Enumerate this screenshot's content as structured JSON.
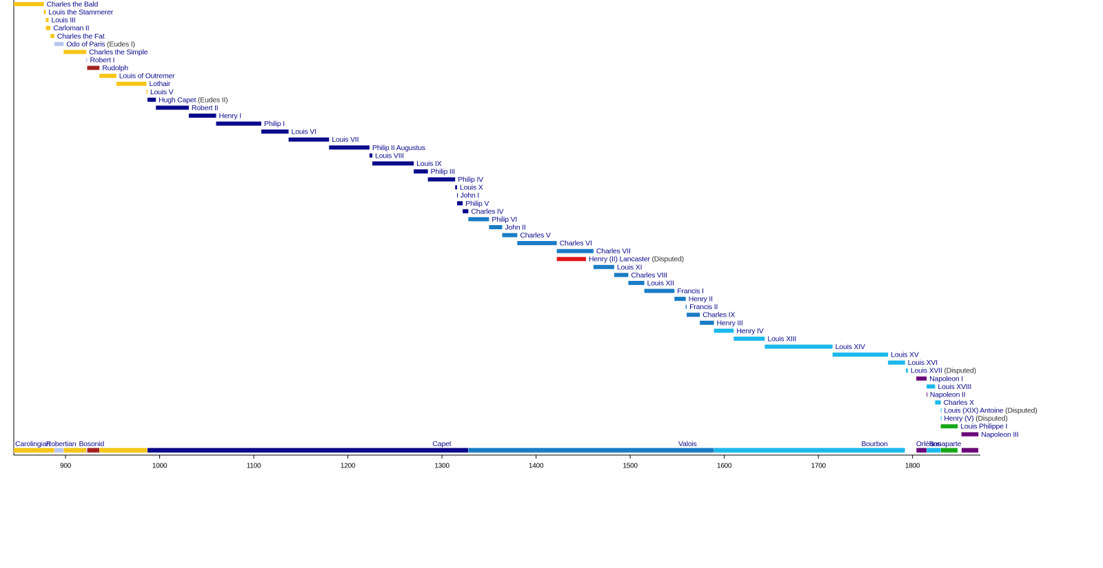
{
  "chart_data": {
    "type": "timeline",
    "xlim": [
      845,
      1872
    ],
    "xticks": [
      900,
      1000,
      1100,
      1200,
      1300,
      1400,
      1500,
      1600,
      1700,
      1800
    ],
    "rulers": [
      {
        "name": "Charles the Bald",
        "start": 843,
        "end": 877,
        "color": "#f5c518"
      },
      {
        "name": "Louis the Stammerer",
        "start": 877,
        "end": 879,
        "color": "#f5c518"
      },
      {
        "name": "Louis III",
        "start": 879,
        "end": 882,
        "color": "#f5c518"
      },
      {
        "name": "Carloman II",
        "start": 879,
        "end": 884,
        "color": "#f5c518"
      },
      {
        "name": "Charles the Fat",
        "start": 884,
        "end": 888,
        "color": "#f5c518"
      },
      {
        "name": "Odo of Paris",
        "note": "(Eudes I)",
        "start": 888,
        "end": 898,
        "color": "#b8c8ec"
      },
      {
        "name": "Charles the Simple",
        "start": 898,
        "end": 922,
        "color": "#f5c518"
      },
      {
        "name": "Robert I",
        "start": 922,
        "end": 923,
        "color": "#b8c8ec"
      },
      {
        "name": "Rudolph",
        "start": 923,
        "end": 936,
        "color": "#a52222"
      },
      {
        "name": "Louis of Outremer",
        "start": 936,
        "end": 954,
        "color": "#f5c518"
      },
      {
        "name": "Lothair",
        "start": 954,
        "end": 986,
        "color": "#f5c518"
      },
      {
        "name": "Louis V",
        "start": 986,
        "end": 987,
        "color": "#f5c518"
      },
      {
        "name": "Hugh Capet",
        "note": "(Eudes II)",
        "start": 987,
        "end": 996,
        "color": "#0a0a8c"
      },
      {
        "name": "Robert II",
        "start": 996,
        "end": 1031,
        "color": "#0a0a8c"
      },
      {
        "name": "Henry I",
        "start": 1031,
        "end": 1060,
        "color": "#0a0a8c"
      },
      {
        "name": "Philip I",
        "start": 1060,
        "end": 1108,
        "color": "#0a0a8c"
      },
      {
        "name": "Louis VI",
        "start": 1108,
        "end": 1137,
        "color": "#0a0a8c"
      },
      {
        "name": "Louis VII",
        "start": 1137,
        "end": 1180,
        "color": "#0a0a8c"
      },
      {
        "name": "Philip II Augustus",
        "start": 1180,
        "end": 1223,
        "color": "#0a0a8c"
      },
      {
        "name": "Louis VIII",
        "start": 1223,
        "end": 1226,
        "color": "#0a0a8c"
      },
      {
        "name": "Louis IX",
        "start": 1226,
        "end": 1270,
        "color": "#0a0a8c"
      },
      {
        "name": "Philip III",
        "start": 1270,
        "end": 1285,
        "color": "#0a0a8c"
      },
      {
        "name": "Philip IV",
        "start": 1285,
        "end": 1314,
        "color": "#0a0a8c"
      },
      {
        "name": "Louis X",
        "start": 1314,
        "end": 1316,
        "color": "#0a0a8c"
      },
      {
        "name": "John I",
        "start": 1316,
        "end": 1316.5,
        "color": "#0a0a8c"
      },
      {
        "name": "Philip V",
        "start": 1316,
        "end": 1322,
        "color": "#0a0a8c"
      },
      {
        "name": "Charles IV",
        "start": 1322,
        "end": 1328,
        "color": "#0a0a8c"
      },
      {
        "name": "Philip VI",
        "start": 1328,
        "end": 1350,
        "color": "#1a7cc4"
      },
      {
        "name": "John II",
        "start": 1350,
        "end": 1364,
        "color": "#1a7cc4"
      },
      {
        "name": "Charles V",
        "start": 1364,
        "end": 1380,
        "color": "#1a7cc4"
      },
      {
        "name": "Charles VI",
        "start": 1380,
        "end": 1422,
        "color": "#1a7cc4"
      },
      {
        "name": "Charles VII",
        "start": 1422,
        "end": 1461,
        "color": "#1a7cc4"
      },
      {
        "name": "Henry (II) Lancaster",
        "note": "(Disputed)",
        "start": 1422,
        "end": 1453,
        "color": "#e01818"
      },
      {
        "name": "Louis XI",
        "start": 1461,
        "end": 1483,
        "color": "#1a7cc4"
      },
      {
        "name": "Charles VIII",
        "start": 1483,
        "end": 1498,
        "color": "#1a7cc4"
      },
      {
        "name": "Louis XII",
        "start": 1498,
        "end": 1515,
        "color": "#1a7cc4"
      },
      {
        "name": "Francis I",
        "start": 1515,
        "end": 1547,
        "color": "#1a7cc4"
      },
      {
        "name": "Henry II",
        "start": 1547,
        "end": 1559,
        "color": "#1a7cc4"
      },
      {
        "name": "Francis II",
        "start": 1559,
        "end": 1560,
        "color": "#1a7cc4"
      },
      {
        "name": "Charles IX",
        "start": 1560,
        "end": 1574,
        "color": "#1a7cc4"
      },
      {
        "name": "Henry III",
        "start": 1574,
        "end": 1589,
        "color": "#1a7cc4"
      },
      {
        "name": "Henry IV",
        "start": 1589,
        "end": 1610,
        "color": "#1cb8ec"
      },
      {
        "name": "Louis XIII",
        "start": 1610,
        "end": 1643,
        "color": "#1cb8ec"
      },
      {
        "name": "Louis XIV",
        "start": 1643,
        "end": 1715,
        "color": "#1cb8ec"
      },
      {
        "name": "Louis XV",
        "start": 1715,
        "end": 1774,
        "color": "#1cb8ec"
      },
      {
        "name": "Louis XVI",
        "start": 1774,
        "end": 1792,
        "color": "#1cb8ec"
      },
      {
        "name": "Louis XVII",
        "note": "(Disputed)",
        "start": 1793,
        "end": 1795,
        "color": "#1cb8ec"
      },
      {
        "name": "Napoleon I",
        "start": 1804,
        "end": 1815,
        "color": "#6a0a78"
      },
      {
        "name": "Louis XVIII",
        "start": 1815,
        "end": 1824,
        "color": "#1cb8ec"
      },
      {
        "name": "Napoleon II",
        "start": 1815,
        "end": 1815.5,
        "color": "#6a0a78"
      },
      {
        "name": "Charles X",
        "start": 1824,
        "end": 1830,
        "color": "#1cb8ec"
      },
      {
        "name": "Louis (XIX) Antoine",
        "note": "(Disputed)",
        "start": 1830,
        "end": 1830.5,
        "color": "#1cb8ec"
      },
      {
        "name": "Henry (V)",
        "note": "(Disputed)",
        "start": 1830,
        "end": 1830.5,
        "color": "#1cb8ec"
      },
      {
        "name": "Louis Philippe I",
        "start": 1830,
        "end": 1848,
        "color": "#18a818"
      },
      {
        "name": "Napoleon III",
        "start": 1852,
        "end": 1870,
        "color": "#6a0a78"
      }
    ],
    "dynasties": [
      {
        "name": "Carolingian",
        "color": "#f5c518"
      },
      {
        "name": "Robertian",
        "color": "#b8c8ec"
      },
      {
        "name": "Bosonid",
        "color": "#a52222"
      },
      {
        "name": "Capet",
        "color": "#0a0a8c"
      },
      {
        "name": "Valois",
        "color": "#1a7cc4"
      },
      {
        "name": "Bourbon",
        "color": "#1cb8ec"
      },
      {
        "name": "Bonaparte",
        "color": "#6a0a78"
      },
      {
        "name": "Orléans",
        "color": "#18a818"
      }
    ],
    "dynasty_periods": [
      {
        "dynasty": 0,
        "start": 843,
        "end": 888
      },
      {
        "dynasty": 1,
        "start": 888,
        "end": 898
      },
      {
        "dynasty": 0,
        "start": 898,
        "end": 922
      },
      {
        "dynasty": 1,
        "start": 922,
        "end": 923
      },
      {
        "dynasty": 2,
        "start": 923,
        "end": 936
      },
      {
        "dynasty": 0,
        "start": 936,
        "end": 987
      },
      {
        "dynasty": 3,
        "start": 987,
        "end": 1328
      },
      {
        "dynasty": 4,
        "start": 1328,
        "end": 1589
      },
      {
        "dynasty": 5,
        "start": 1589,
        "end": 1792
      },
      {
        "dynasty": 6,
        "start": 1804,
        "end": 1815
      },
      {
        "dynasty": 5,
        "start": 1815,
        "end": 1830
      },
      {
        "dynasty": 7,
        "start": 1830,
        "end": 1848
      },
      {
        "dynasty": 6,
        "start": 1852,
        "end": 1870
      }
    ]
  }
}
